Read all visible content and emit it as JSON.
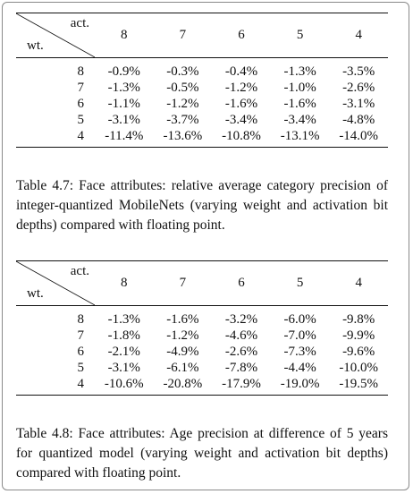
{
  "tables": [
    {
      "corner_top": "act.",
      "corner_bottom": "wt.",
      "column_headers": [
        "8",
        "7",
        "6",
        "5",
        "4"
      ],
      "rows": [
        {
          "wt": "8",
          "values": [
            "-0.9%",
            "-0.3%",
            "-0.4%",
            "-1.3%",
            "-3.5%"
          ]
        },
        {
          "wt": "7",
          "values": [
            "-1.3%",
            "-0.5%",
            "-1.2%",
            "-1.0%",
            "-2.6%"
          ]
        },
        {
          "wt": "6",
          "values": [
            "-1.1%",
            "-1.2%",
            "-1.6%",
            "-1.6%",
            "-3.1%"
          ]
        },
        {
          "wt": "5",
          "values": [
            "-3.1%",
            "-3.7%",
            "-3.4%",
            "-3.4%",
            "-4.8%"
          ]
        },
        {
          "wt": "4",
          "values": [
            "-11.4%",
            "-13.6%",
            "-10.8%",
            "-13.1%",
            "-14.0%"
          ]
        }
      ],
      "caption": "Table 4.7: Face attributes: relative average category precision of integer-quantized MobileNets (varying weight and activation bit depths) compared with floating point."
    },
    {
      "corner_top": "act.",
      "corner_bottom": "wt.",
      "column_headers": [
        "8",
        "7",
        "6",
        "5",
        "4"
      ],
      "rows": [
        {
          "wt": "8",
          "values": [
            "-1.3%",
            "-1.6%",
            "-3.2%",
            "-6.0%",
            "-9.8%"
          ]
        },
        {
          "wt": "7",
          "values": [
            "-1.8%",
            "-1.2%",
            "-4.6%",
            "-7.0%",
            "-9.9%"
          ]
        },
        {
          "wt": "6",
          "values": [
            "-2.1%",
            "-4.9%",
            "-2.6%",
            "-7.3%",
            "-9.6%"
          ]
        },
        {
          "wt": "5",
          "values": [
            "-3.1%",
            "-6.1%",
            "-7.8%",
            "-4.4%",
            "-10.0%"
          ]
        },
        {
          "wt": "4",
          "values": [
            "-10.6%",
            "-20.8%",
            "-17.9%",
            "-19.0%",
            "-19.5%"
          ]
        }
      ],
      "caption": "Table 4.8: Face attributes: Age precision at difference of 5 years for quantized model (varying weight and activation bit depths) compared with floating point."
    }
  ]
}
